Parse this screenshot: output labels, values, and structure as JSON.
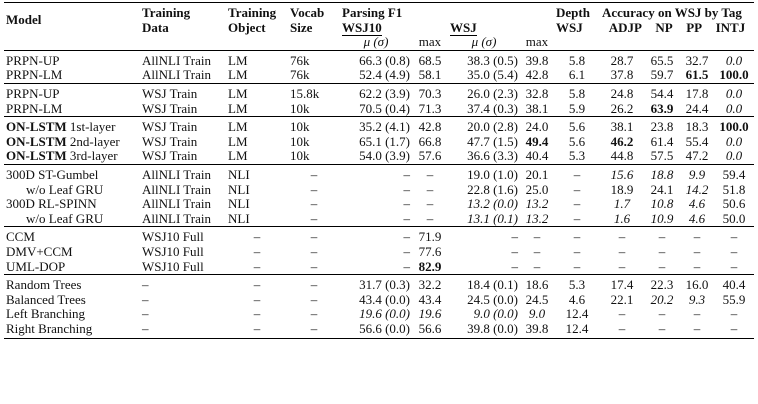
{
  "header": {
    "model": "Model",
    "training_data": "Training Data",
    "training_object": "Training Object",
    "vocab_size": "Vocab Size",
    "parsing_f1": "Parsing F1",
    "wsj10": "WSJ10",
    "wsj": "WSJ",
    "mu_sigma": "μ (σ)",
    "max": "max",
    "depth_wsj": "Depth WSJ",
    "accuracy": "Accuracy on WSJ by Tag",
    "tags": [
      "ADJP",
      "NP",
      "PP",
      "INTJ"
    ]
  },
  "groups": [
    {
      "rows": [
        {
          "model": "PRPN-UP",
          "data": "AllNLI Train",
          "obj": "LM",
          "vocab": "76k",
          "w10mu": "66.3 (0.8)",
          "w10max": "68.5",
          "wmu": "38.3 (0.5)",
          "wmax": "39.8",
          "depth": "5.8",
          "adjp": "28.7",
          "np": "65.5",
          "pp": "32.7",
          "intj": "0.0"
        },
        {
          "model": "PRPN-LM",
          "data": "AllNLI Train",
          "obj": "LM",
          "vocab": "76k",
          "w10mu": "52.4 (4.9)",
          "w10max": "58.1",
          "wmu": "35.0 (5.4)",
          "wmax": "42.8",
          "depth": "6.1",
          "adjp": "37.8",
          "np": "59.7",
          "pp": "61.5",
          "intj": "100.0"
        }
      ]
    },
    {
      "rows": [
        {
          "model": "PRPN-UP",
          "data": "WSJ Train",
          "obj": "LM",
          "vocab": "15.8k",
          "w10mu": "62.2 (3.9)",
          "w10max": "70.3",
          "wmu": "26.0 (2.3)",
          "wmax": "32.8",
          "depth": "5.8",
          "adjp": "24.8",
          "np": "54.4",
          "pp": "17.8",
          "intj": "0.0"
        },
        {
          "model": "PRPN-LM",
          "data": "WSJ Train",
          "obj": "LM",
          "vocab": "10k",
          "w10mu": "70.5 (0.4)",
          "w10max": "71.3",
          "wmu": "37.4 (0.3)",
          "wmax": "38.1",
          "depth": "5.9",
          "adjp": "26.2",
          "np": "63.9",
          "pp": "24.4",
          "intj": "0.0"
        }
      ]
    },
    {
      "rows": [
        {
          "model": "ON-LSTM",
          "layer": "1st-layer",
          "data": "WSJ Train",
          "obj": "LM",
          "vocab": "10k",
          "w10mu": "35.2 (4.1)",
          "w10max": "42.8",
          "wmu": "20.0 (2.8)",
          "wmax": "24.0",
          "depth": "5.6",
          "adjp": "38.1",
          "np": "23.8",
          "pp": "18.3",
          "intj": "100.0"
        },
        {
          "model": "ON-LSTM",
          "layer": "2nd-layer",
          "data": "WSJ Train",
          "obj": "LM",
          "vocab": "10k",
          "w10mu": "65.1 (1.7)",
          "w10max": "66.8",
          "wmu": "47.7 (1.5)",
          "wmax": "49.4",
          "depth": "5.6",
          "adjp": "46.2",
          "np": "61.4",
          "pp": "55.4",
          "intj": "0.0"
        },
        {
          "model": "ON-LSTM",
          "layer": "3rd-layer",
          "data": "WSJ Train",
          "obj": "LM",
          "vocab": "10k",
          "w10mu": "54.0 (3.9)",
          "w10max": "57.6",
          "wmu": "36.6 (3.3)",
          "wmax": "40.4",
          "depth": "5.3",
          "adjp": "44.8",
          "np": "57.5",
          "pp": "47.2",
          "intj": "0.0"
        }
      ]
    },
    {
      "rows": [
        {
          "model": "300D ST-Gumbel",
          "data": "AllNLI Train",
          "obj": "NLI",
          "vocab": "–",
          "w10mu": "–",
          "w10max": "–",
          "wmu": "19.0 (1.0)",
          "wmax": "20.1",
          "depth": "–",
          "adjp": "15.6",
          "np": "18.8",
          "pp": "9.9",
          "intj": "59.4"
        },
        {
          "model": "w/o Leaf GRU",
          "data": "AllNLI Train",
          "obj": "NLI",
          "vocab": "–",
          "w10mu": "–",
          "w10max": "–",
          "wmu": "22.8 (1.6)",
          "wmax": "25.0",
          "depth": "–",
          "adjp": "18.9",
          "np": "24.1",
          "pp": "14.2",
          "intj": "51.8"
        },
        {
          "model": "300D RL-SPINN",
          "data": "AllNLI Train",
          "obj": "NLI",
          "vocab": "–",
          "w10mu": "–",
          "w10max": "–",
          "wmu": "13.2 (0.0)",
          "wmax": "13.2",
          "depth": "–",
          "adjp": "1.7",
          "np": "10.8",
          "pp": "4.6",
          "intj": "50.6"
        },
        {
          "model": "w/o Leaf GRU",
          "data": "AllNLI Train",
          "obj": "NLI",
          "vocab": "–",
          "w10mu": "–",
          "w10max": "–",
          "wmu": "13.1 (0.1)",
          "wmax": "13.2",
          "depth": "–",
          "adjp": "1.6",
          "np": "10.9",
          "pp": "4.6",
          "intj": "50.0"
        }
      ]
    },
    {
      "rows": [
        {
          "model": "CCM",
          "data": "WSJ10 Full",
          "obj": "–",
          "vocab": "–",
          "w10mu": "–",
          "w10max": "71.9",
          "wmu": "–",
          "wmax": "–",
          "depth": "–",
          "adjp": "–",
          "np": "–",
          "pp": "–",
          "intj": "–"
        },
        {
          "model": "DMV+CCM",
          "data": "WSJ10 Full",
          "obj": "–",
          "vocab": "–",
          "w10mu": "–",
          "w10max": "77.6",
          "wmu": "–",
          "wmax": "–",
          "depth": "–",
          "adjp": "–",
          "np": "–",
          "pp": "–",
          "intj": "–"
        },
        {
          "model": "UML-DOP",
          "data": "WSJ10 Full",
          "obj": "–",
          "vocab": "–",
          "w10mu": "–",
          "w10max": "82.9",
          "wmu": "–",
          "wmax": "–",
          "depth": "–",
          "adjp": "–",
          "np": "–",
          "pp": "–",
          "intj": "–"
        }
      ]
    },
    {
      "rows": [
        {
          "model": "Random Trees",
          "data": "–",
          "obj": "–",
          "vocab": "–",
          "w10mu": "31.7 (0.3)",
          "w10max": "32.2",
          "wmu": "18.4 (0.1)",
          "wmax": "18.6",
          "depth": "5.3",
          "adjp": "17.4",
          "np": "22.3",
          "pp": "16.0",
          "intj": "40.4"
        },
        {
          "model": "Balanced Trees",
          "data": "–",
          "obj": "–",
          "vocab": "–",
          "w10mu": "43.4 (0.0)",
          "w10max": "43.4",
          "wmu": "24.5 (0.0)",
          "wmax": "24.5",
          "depth": "4.6",
          "adjp": "22.1",
          "np": "20.2",
          "pp": "9.3",
          "intj": "55.9"
        },
        {
          "model": "Left Branching",
          "data": "–",
          "obj": "–",
          "vocab": "–",
          "w10mu": "19.6 (0.0)",
          "w10max": "19.6",
          "wmu": "9.0 (0.0)",
          "wmax": "9.0",
          "depth": "12.4",
          "adjp": "–",
          "np": "–",
          "pp": "–",
          "intj": "–"
        },
        {
          "model": "Right Branching",
          "data": "–",
          "obj": "–",
          "vocab": "–",
          "w10mu": "56.6 (0.0)",
          "w10max": "56.6",
          "wmu": "39.8 (0.0)",
          "wmax": "39.8",
          "depth": "12.4",
          "adjp": "–",
          "np": "–",
          "pp": "–",
          "intj": "–"
        }
      ]
    }
  ]
}
